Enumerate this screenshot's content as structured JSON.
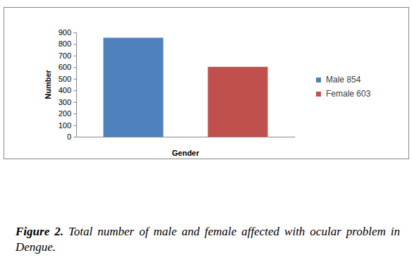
{
  "chart_data": {
    "type": "bar",
    "title": "Figure 2.",
    "subtitle": "Total number of male and female affected with ocular problem in Dengue.",
    "x_label": "Gender",
    "y_label": "Number",
    "categories": [
      null
    ],
    "series": [
      {
        "name": "Male 854",
        "color": "#4f81bd",
        "values": [
          854
        ]
      },
      {
        "name": "Female 603",
        "color": "#c0504d",
        "values": [
          603
        ]
      }
    ],
    "ylim": [
      0,
      900
    ],
    "yticks": [
      0,
      100,
      200,
      300,
      400,
      500,
      600,
      700,
      800,
      900
    ],
    "grid": false,
    "legend": "right"
  }
}
